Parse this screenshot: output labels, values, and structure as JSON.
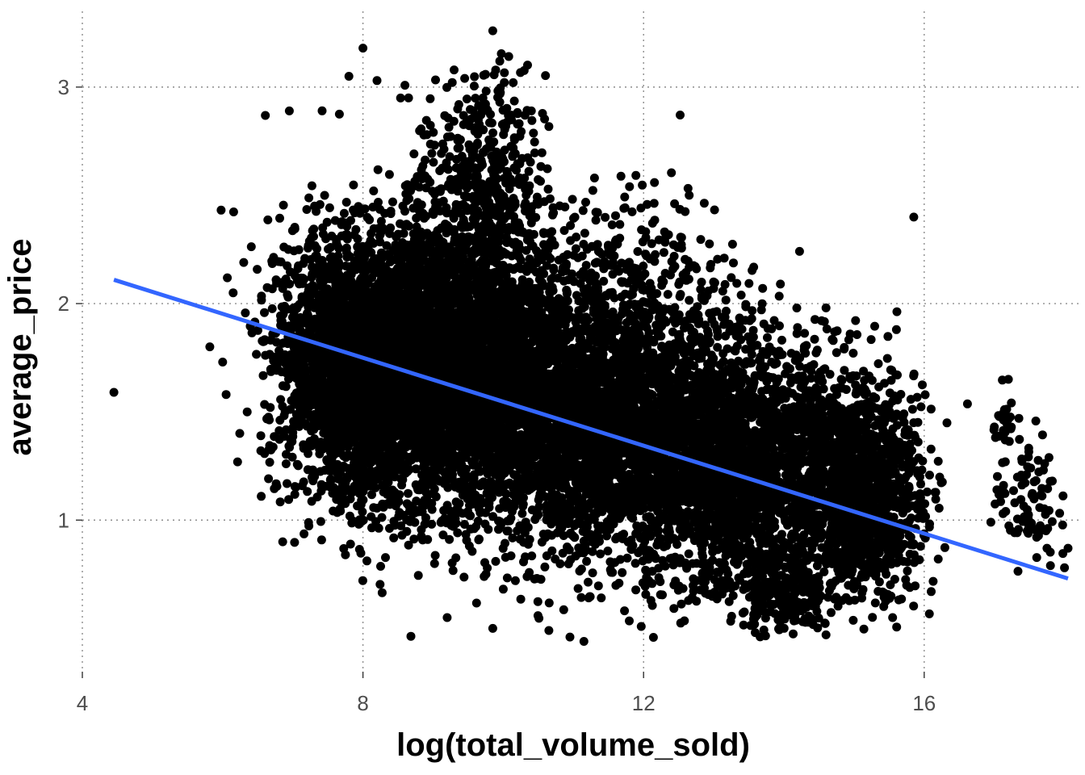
{
  "chart_data": {
    "type": "scatter",
    "title": "",
    "xlabel": "log(total_volume_sold)",
    "ylabel": "average_price",
    "xlim": [
      4,
      18.2
    ],
    "ylim": [
      0.3,
      3.35
    ],
    "x_ticks": [
      4,
      8,
      12,
      16
    ],
    "y_ticks": [
      1,
      2,
      3
    ],
    "x_tick_labels": [
      "4",
      "8",
      "12",
      "16"
    ],
    "y_tick_labels": [
      "1",
      "2",
      "3"
    ],
    "grid": true,
    "legend": "none",
    "colors": {
      "points": "#000000",
      "trend": "#3366ff",
      "grid": "#8c8c8c"
    },
    "trend_line": {
      "type": "linear",
      "x": [
        4.45,
        18.05
      ],
      "y": [
        2.11,
        0.73
      ]
    },
    "dense_clusters": [
      {
        "cx": 9.2,
        "cy": 1.75,
        "sx": 0.9,
        "sy": 0.32,
        "count": 3200
      },
      {
        "cx": 8.2,
        "cy": 1.65,
        "sx": 0.6,
        "sy": 0.28,
        "count": 1800
      },
      {
        "cx": 10.8,
        "cy": 1.5,
        "sx": 0.9,
        "sy": 0.32,
        "count": 2200
      },
      {
        "cx": 12.3,
        "cy": 1.35,
        "sx": 0.8,
        "sy": 0.3,
        "count": 1800
      },
      {
        "cx": 13.5,
        "cy": 1.25,
        "sx": 0.6,
        "sy": 0.3,
        "count": 1300
      },
      {
        "cx": 14.8,
        "cy": 1.2,
        "sx": 0.55,
        "sy": 0.28,
        "count": 900
      },
      {
        "cx": 15.3,
        "cy": 1.1,
        "sx": 0.35,
        "sy": 0.22,
        "count": 500
      },
      {
        "cx": 9.7,
        "cy": 2.55,
        "sx": 0.45,
        "sy": 0.25,
        "count": 450
      },
      {
        "cx": 7.5,
        "cy": 1.8,
        "sx": 0.45,
        "sy": 0.3,
        "count": 600
      },
      {
        "cx": 17.45,
        "cy": 1.1,
        "sx": 0.22,
        "sy": 0.15,
        "count": 90
      },
      {
        "cx": 17.15,
        "cy": 1.5,
        "sx": 0.06,
        "sy": 0.1,
        "count": 20
      },
      {
        "cx": 12.0,
        "cy": 2.2,
        "sx": 0.6,
        "sy": 0.18,
        "count": 160
      },
      {
        "cx": 14.0,
        "cy": 0.65,
        "sx": 0.3,
        "sy": 0.08,
        "count": 160
      }
    ],
    "sample_points": [
      {
        "x": 4.45,
        "y": 1.59
      },
      {
        "x": 6.0,
        "y": 1.73
      },
      {
        "x": 6.05,
        "y": 1.58
      },
      {
        "x": 6.15,
        "y": 2.05
      },
      {
        "x": 6.35,
        "y": 1.5
      },
      {
        "x": 6.55,
        "y": 1.11
      },
      {
        "x": 6.3,
        "y": 2.19
      },
      {
        "x": 7.75,
        "y": 0.84
      },
      {
        "x": 8.0,
        "y": 3.18
      },
      {
        "x": 7.8,
        "y": 3.05
      },
      {
        "x": 8.2,
        "y": 3.03
      },
      {
        "x": 6.95,
        "y": 2.89
      },
      {
        "x": 9.85,
        "y": 3.26
      },
      {
        "x": 9.95,
        "y": 3.12
      },
      {
        "x": 9.45,
        "y": 3.04
      },
      {
        "x": 8.65,
        "y": 2.95
      },
      {
        "x": 10.4,
        "y": 2.89
      },
      {
        "x": 11.3,
        "y": 2.58
      },
      {
        "x": 11.8,
        "y": 2.54
      },
      {
        "x": 11.15,
        "y": 0.44
      },
      {
        "x": 10.95,
        "y": 0.46
      },
      {
        "x": 9.85,
        "y": 0.5
      },
      {
        "x": 9.2,
        "y": 0.55
      },
      {
        "x": 10.65,
        "y": 0.49
      },
      {
        "x": 13.15,
        "y": 2.21
      },
      {
        "x": 13.25,
        "y": 2.12
      },
      {
        "x": 13.95,
        "y": 2.09
      },
      {
        "x": 14.6,
        "y": 1.98
      },
      {
        "x": 14.6,
        "y": 0.47
      },
      {
        "x": 15.55,
        "y": 0.55
      },
      {
        "x": 16.1,
        "y": 0.67
      },
      {
        "x": 16.2,
        "y": 0.82
      },
      {
        "x": 15.85,
        "y": 1.45
      },
      {
        "x": 17.2,
        "y": 1.65
      },
      {
        "x": 17.35,
        "y": 1.47
      },
      {
        "x": 17.0,
        "y": 1.43
      },
      {
        "x": 17.75,
        "y": 0.87
      },
      {
        "x": 17.8,
        "y": 0.79
      },
      {
        "x": 18.0,
        "y": 0.78
      },
      {
        "x": 18.05,
        "y": 0.87
      },
      {
        "x": 16.95,
        "y": 0.99
      },
      {
        "x": 17.6,
        "y": 0.95
      }
    ]
  }
}
